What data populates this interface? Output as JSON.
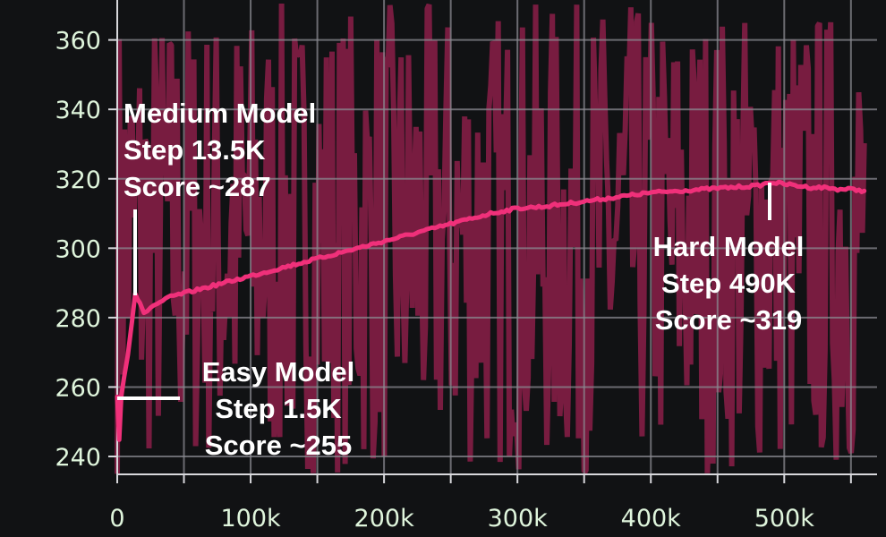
{
  "chart_data": {
    "type": "line",
    "title": "",
    "xlabel": "",
    "ylabel": "",
    "xlim": [
      0,
      570000
    ],
    "ylim": [
      235,
      371
    ],
    "grid": true,
    "x_ticks": [
      0,
      50000,
      100000,
      150000,
      200000,
      250000,
      300000,
      350000,
      400000,
      450000,
      500000,
      550000
    ],
    "x_tick_labels": [
      {
        "x": 0,
        "label": "0"
      },
      {
        "x": 100000,
        "label": "100k"
      },
      {
        "x": 200000,
        "label": "200k"
      },
      {
        "x": 300000,
        "label": "300k"
      },
      {
        "x": 400000,
        "label": "400k"
      },
      {
        "x": 500000,
        "label": "500k"
      }
    ],
    "y_ticks": [
      240,
      260,
      280,
      300,
      320,
      340,
      360
    ],
    "series": [
      {
        "role": "smoothed",
        "color": "#f0307a",
        "x": [
          0,
          1500,
          3000,
          5000,
          8000,
          11000,
          13500,
          17000,
          20000,
          25000,
          30000,
          40000,
          50000,
          60000,
          70000,
          80000,
          100000,
          120000,
          140000,
          160000,
          180000,
          200000,
          220000,
          240000,
          260000,
          280000,
          300000,
          320000,
          340000,
          360000,
          380000,
          400000,
          420000,
          440000,
          460000,
          480000,
          490000,
          500000,
          510000,
          520000,
          530000,
          540000,
          550000,
          560000
        ],
        "y": [
          257,
          245,
          258,
          263,
          270,
          279,
          287,
          284,
          281,
          283,
          284,
          286,
          287,
          288,
          289,
          290,
          292,
          294,
          296,
          298,
          300,
          302,
          304,
          306,
          308,
          310,
          311.5,
          312,
          313,
          314,
          315,
          316,
          316.5,
          317,
          317.5,
          318,
          319,
          318.5,
          318,
          317.5,
          317.5,
          317,
          317,
          316.5
        ]
      }
    ],
    "raw_series": {
      "color": "#781c40",
      "band_low": 235,
      "band_high": 371
    },
    "annotations": [
      {
        "lines": [
          "Medium Model",
          "Step 13.5K",
          "Score ~287"
        ],
        "x": 13500,
        "y": 287
      },
      {
        "lines": [
          "Hard Model",
          "Step 490K",
          "Score ~319"
        ],
        "x": 490000,
        "y": 319
      },
      {
        "lines": [
          "Easy Model",
          "Step 1.5K",
          "Score ~255"
        ],
        "x": 1500,
        "y": 257
      }
    ]
  }
}
